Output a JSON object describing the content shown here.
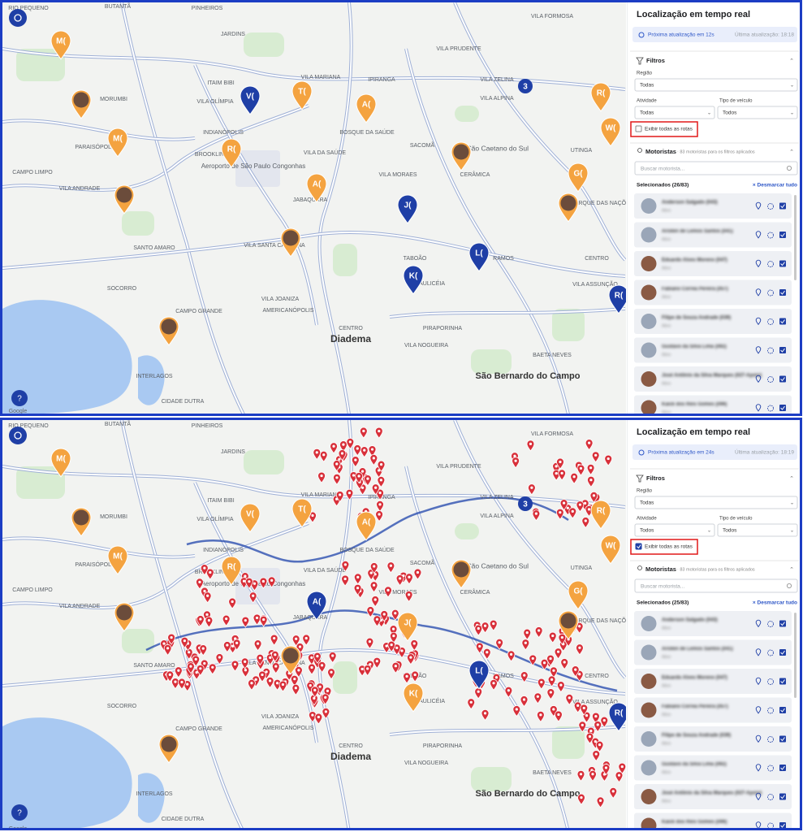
{
  "map_labels": [
    "RIO PEQUENO",
    "BUTANTÃ",
    "PINHEIROS",
    "JARDINS",
    "VILA FORMOSA",
    "ITAIM BIBI",
    "VILA MARIANA",
    "IPIRANGA",
    "VILA PRUDENTE",
    "VILA ZELINA",
    "VILA ALPINA",
    "MORUMBI",
    "VILA OLÍMPIA",
    "BOSQUE DA SAÚDE",
    "PARAISÓPOLIS",
    "INDIANÓPOLIS",
    "VILA DA SAÚDE",
    "SACOMÃ",
    "São Caetano do Sul",
    "UTINGA",
    "BROOKLIN",
    "Aeroporto de São Paulo Congonhas",
    "VILA MORAES",
    "CERÂMICA",
    "CAMPO LIMPO",
    "VILA ANDRADE",
    "JABAQUARA",
    "PARQUE DAS NAÇÕES",
    "SANTO AMARO",
    "VILA SANTA CATARINA",
    "TABOÃO",
    "RAMOS",
    "CENTRO",
    "PAULICÉIA",
    "SOCORRO",
    "VILA ASSUNÇÃO",
    "VILA JOANIZA",
    "AMERICANÓPOLIS",
    "CAMPO GRANDE",
    "CENTRO",
    "PIRAPORINHA",
    "Diadema",
    "VILA NOGUEIRA",
    "BAETA NEVES",
    "INTERLAGOS",
    "São Bernardo do Campo",
    "CIDADE DUTRA",
    "Google"
  ],
  "drivers": [
    {
      "name": "Anderson Salgado (043)",
      "status": "Ativo"
    },
    {
      "name": "Aristen de Lemos Santos (041)",
      "status": "Ativo"
    },
    {
      "name": "Eduardo Alves Moreno (047)",
      "status": "Ativo"
    },
    {
      "name": "Fabiano Correa Pereira (057)",
      "status": "Ativo"
    },
    {
      "name": "Filipe de Souza Andrade (039)",
      "status": "Ativo"
    },
    {
      "name": "Gustavo da Silva Lima (092)",
      "status": "Ativo"
    },
    {
      "name": "José Antônio da Silva Marques (027-Apoio)",
      "status": "Ativo"
    },
    {
      "name": "Kaick dos Reis Gomes (099)",
      "status": "Ativo"
    }
  ],
  "panels": [
    {
      "show_all_routes": false,
      "markers": [
        {
          "label": "M(",
          "color": "#f4a340"
        },
        {
          "label": "T(",
          "color": "#f4a340"
        },
        {
          "label": "A(",
          "color": "#f4a340"
        },
        {
          "label": "R(",
          "color": "#f4a340"
        },
        {
          "label": "W(",
          "color": "#f4a340"
        },
        {
          "label": "M(",
          "color": "#f4a340"
        },
        {
          "label": "R(",
          "color": "#f4a340"
        },
        {
          "label": "A(",
          "color": "#f4a340"
        },
        {
          "label": "G(",
          "color": "#f4a340"
        },
        {
          "label": "V(",
          "color": "#1f3fa6"
        },
        {
          "label": "J(",
          "color": "#1f3fa6"
        },
        {
          "label": "K(",
          "color": "#1f3fa6"
        },
        {
          "label": "L(",
          "color": "#1f3fa6"
        },
        {
          "label": "R(",
          "color": "#1f3fa6"
        },
        {
          "label": "3",
          "color": "#1f3fa6"
        }
      ],
      "sidebar": {
        "title": "Localização em tempo real",
        "next_update": "Próxima atualização em 12s",
        "last_update": "Última atualização: 18:18",
        "filters": "Filtros",
        "region_label": "Região",
        "region_value": "Todas",
        "activity_label": "Atividade",
        "activity_value": "Todas",
        "vehicle_label": "Tipo de veículo",
        "vehicle_value": "Todos",
        "routes_checkbox": "Exibir todas as rotas",
        "drivers_title": "Motoristas",
        "drivers_note": "· 83 motoristas para os filtros aplicados",
        "search_placeholder": "Buscar motorista...",
        "selected": "Selecionados (26/83)",
        "clear": "× Desmarcar tudo"
      }
    },
    {
      "show_all_routes": true,
      "markers": [
        {
          "label": "M(",
          "color": "#f4a340"
        },
        {
          "label": "T(",
          "color": "#f4a340"
        },
        {
          "label": "A(",
          "color": "#f4a340"
        },
        {
          "label": "R(",
          "color": "#f4a340"
        },
        {
          "label": "W(",
          "color": "#f4a340"
        },
        {
          "label": "M(",
          "color": "#f4a340"
        },
        {
          "label": "R(",
          "color": "#f4a340"
        },
        {
          "label": "A(",
          "color": "#1f3fa6"
        },
        {
          "label": "G(",
          "color": "#f4a340"
        },
        {
          "label": "V(",
          "color": "#f4a340"
        },
        {
          "label": "J(",
          "color": "#f4a340"
        },
        {
          "label": "K(",
          "color": "#f4a340"
        },
        {
          "label": "L(",
          "color": "#1f3fa6"
        },
        {
          "label": "R(",
          "color": "#1f3fa6"
        },
        {
          "label": "3",
          "color": "#1f3fa6"
        }
      ],
      "sidebar": {
        "title": "Localização em tempo real",
        "next_update": "Próxima atualização em 24s",
        "last_update": "Última atualização: 18:19",
        "filters": "Filtros",
        "region_label": "Região",
        "region_value": "Todas",
        "activity_label": "Atividade",
        "activity_value": "Todos",
        "vehicle_label": "Tipo de veículo",
        "vehicle_value": "Todos",
        "routes_checkbox": "Exibir todas as rotas",
        "drivers_title": "Motoristas",
        "drivers_note": "· 83 motoristas para os filtros aplicados",
        "search_placeholder": "Buscar motorista...",
        "selected": "Selecionados (25/83)",
        "clear": "× Desmarcar tudo"
      }
    }
  ]
}
